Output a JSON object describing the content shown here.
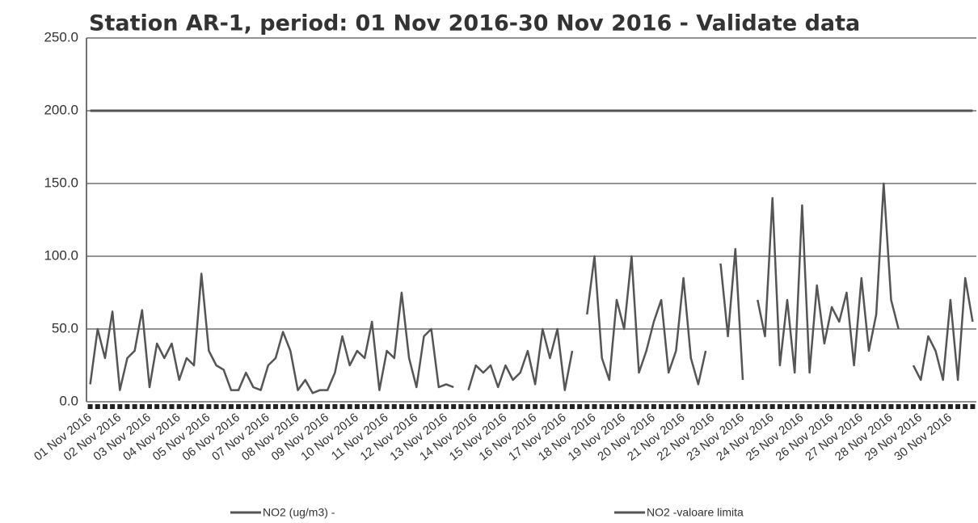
{
  "chart_data": {
    "type": "line",
    "title": "Station AR-1, period: 01 Nov 2016-30 Nov 2016 - Validate data",
    "categories": [
      "01 Nov 2016",
      null,
      null,
      null,
      "02 Nov 2016",
      null,
      null,
      null,
      "03 Nov 2016",
      null,
      null,
      null,
      "04 Nov 2016",
      null,
      null,
      null,
      "05 Nov 2016",
      null,
      null,
      null,
      "06 Nov 2016",
      null,
      null,
      null,
      "07 Nov 2016",
      null,
      null,
      null,
      "08 Nov 2016",
      null,
      null,
      null,
      "09 Nov 2016",
      null,
      null,
      null,
      "10 Nov 2016",
      null,
      null,
      null,
      "11 Nov 2016",
      null,
      null,
      null,
      "12 Nov 2016",
      null,
      null,
      null,
      "13 Nov 2016",
      null,
      null,
      null,
      "14 Nov 2016",
      null,
      null,
      null,
      "15 Nov 2016",
      null,
      null,
      null,
      "16 Nov 2016",
      null,
      null,
      null,
      "17 Nov 2016",
      null,
      null,
      null,
      "18 Nov 2016",
      null,
      null,
      null,
      "19 Nov 2016",
      null,
      null,
      null,
      "20 Nov 2016",
      null,
      null,
      null,
      "21 Nov 2016",
      null,
      null,
      null,
      "22 Nov 2016",
      null,
      null,
      null,
      "23 Nov 2016",
      null,
      null,
      null,
      "24 Nov 2016",
      null,
      null,
      null,
      "25 Nov 2016",
      null,
      null,
      null,
      "26 Nov 2016",
      null,
      null,
      null,
      "27 Nov 2016",
      null,
      null,
      null,
      "28 Nov 2016",
      null,
      null,
      null,
      "29 Nov 2016",
      null,
      null,
      null,
      "30 Nov 2016",
      null,
      null,
      null
    ],
    "series": [
      {
        "name": "NO2 (ug/m3)  -",
        "color": "#555555",
        "values": [
          12,
          50,
          30,
          62,
          8,
          30,
          35,
          63,
          10,
          40,
          30,
          40,
          15,
          30,
          25,
          88,
          35,
          25,
          22,
          8,
          8,
          20,
          10,
          8,
          25,
          30,
          48,
          35,
          8,
          15,
          6,
          8,
          8,
          20,
          45,
          25,
          35,
          30,
          55,
          8,
          35,
          30,
          75,
          30,
          10,
          45,
          50,
          10,
          12,
          10,
          null,
          8,
          25,
          20,
          25,
          10,
          25,
          15,
          20,
          35,
          12,
          50,
          30,
          50,
          8,
          35,
          null,
          60,
          100,
          30,
          15,
          70,
          50,
          100,
          20,
          35,
          55,
          70,
          20,
          35,
          85,
          30,
          12,
          35,
          null,
          95,
          45,
          105,
          15,
          null,
          70,
          45,
          140,
          25,
          70,
          20,
          135,
          20,
          80,
          40,
          65,
          55,
          75,
          25,
          85,
          35,
          60,
          150,
          70,
          50,
          null,
          25,
          15,
          45,
          35,
          15,
          70,
          15,
          85,
          55
        ]
      },
      {
        "name": "NO2 -valoare limita",
        "color": "#555555",
        "values": [
          200,
          200,
          200,
          200,
          200,
          200,
          200,
          200,
          200,
          200,
          200,
          200,
          200,
          200,
          200,
          200,
          200,
          200,
          200,
          200,
          200,
          200,
          200,
          200,
          200,
          200,
          200,
          200,
          200,
          200,
          200,
          200,
          200,
          200,
          200,
          200,
          200,
          200,
          200,
          200,
          200,
          200,
          200,
          200,
          200,
          200,
          200,
          200,
          200,
          200,
          200,
          200,
          200,
          200,
          200,
          200,
          200,
          200,
          200,
          200,
          200,
          200,
          200,
          200,
          200,
          200,
          200,
          200,
          200,
          200,
          200,
          200,
          200,
          200,
          200,
          200,
          200,
          200,
          200,
          200,
          200,
          200,
          200,
          200,
          200,
          200,
          200,
          200,
          200,
          200,
          200,
          200,
          200,
          200,
          200,
          200,
          200,
          200,
          200,
          200,
          200,
          200,
          200,
          200,
          200,
          200,
          200,
          200,
          200,
          200,
          200,
          200,
          200,
          200,
          200,
          200,
          200,
          200,
          200,
          200
        ]
      }
    ],
    "ylim": [
      0,
      250
    ],
    "yticks": [
      {
        "value": 0,
        "label": "0.0"
      },
      {
        "value": 50,
        "label": "50.0"
      },
      {
        "value": 100,
        "label": "100.0"
      },
      {
        "value": 150,
        "label": "150.0"
      },
      {
        "value": 200,
        "label": "200.0"
      },
      {
        "value": 250,
        "label": "250.0"
      }
    ],
    "grid": true
  }
}
